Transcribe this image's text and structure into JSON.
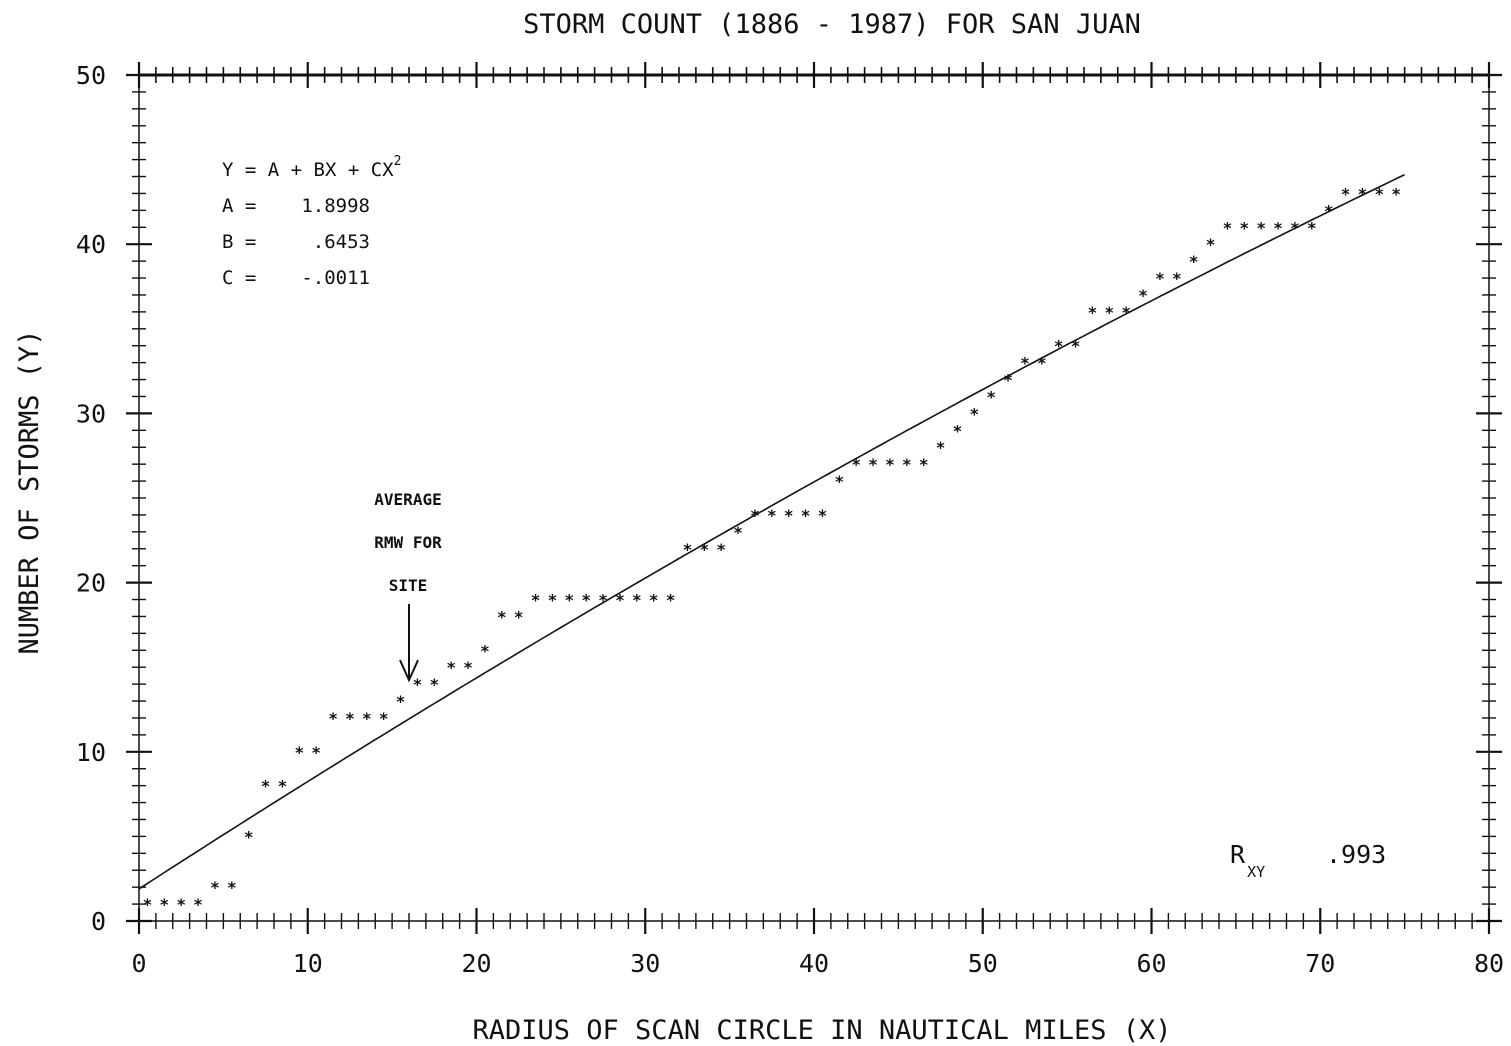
{
  "chart_data": {
    "type": "scatter",
    "title": "STORM COUNT (1886 - 1987) FOR SAN JUAN",
    "xlabel": "RADIUS OF SCAN CIRCLE IN NAUTICAL MILES (X)",
    "ylabel": "NUMBER OF STORMS (Y)",
    "xlim": [
      0,
      80
    ],
    "ylim": [
      0,
      50
    ],
    "x_ticks": [
      "0",
      "10",
      "20",
      "30",
      "40",
      "50",
      "60",
      "70",
      "80"
    ],
    "y_ticks": [
      "0",
      "10",
      "20",
      "30",
      "40",
      "50"
    ],
    "grid": false,
    "marker": "*",
    "points": [
      [
        0.5,
        1
      ],
      [
        1.5,
        1
      ],
      [
        2.5,
        1
      ],
      [
        3.5,
        1
      ],
      [
        4.5,
        2
      ],
      [
        5.5,
        2
      ],
      [
        6.5,
        5
      ],
      [
        7.5,
        8
      ],
      [
        8.5,
        8
      ],
      [
        9.5,
        10
      ],
      [
        10.5,
        10
      ],
      [
        11.5,
        12
      ],
      [
        12.5,
        12
      ],
      [
        13.5,
        12
      ],
      [
        14.5,
        12
      ],
      [
        15.5,
        13
      ],
      [
        16.5,
        14
      ],
      [
        17.5,
        14
      ],
      [
        18.5,
        15
      ],
      [
        19.5,
        15
      ],
      [
        20.5,
        16
      ],
      [
        21.5,
        18
      ],
      [
        22.5,
        18
      ],
      [
        23.5,
        19
      ],
      [
        24.5,
        19
      ],
      [
        25.5,
        19
      ],
      [
        26.5,
        19
      ],
      [
        27.5,
        19
      ],
      [
        28.5,
        19
      ],
      [
        29.5,
        19
      ],
      [
        30.5,
        19
      ],
      [
        31.5,
        19
      ],
      [
        32.5,
        22
      ],
      [
        33.5,
        22
      ],
      [
        34.5,
        22
      ],
      [
        35.5,
        23
      ],
      [
        36.5,
        24
      ],
      [
        37.5,
        24
      ],
      [
        38.5,
        24
      ],
      [
        39.5,
        24
      ],
      [
        40.5,
        24
      ],
      [
        41.5,
        26
      ],
      [
        42.5,
        27
      ],
      [
        43.5,
        27
      ],
      [
        44.5,
        27
      ],
      [
        45.5,
        27
      ],
      [
        46.5,
        27
      ],
      [
        47.5,
        28
      ],
      [
        48.5,
        29
      ],
      [
        49.5,
        30
      ],
      [
        50.5,
        31
      ],
      [
        51.5,
        32
      ],
      [
        52.5,
        33
      ],
      [
        53.5,
        33
      ],
      [
        54.5,
        34
      ],
      [
        55.5,
        34
      ],
      [
        56.5,
        36
      ],
      [
        57.5,
        36
      ],
      [
        58.5,
        36
      ],
      [
        59.5,
        37
      ],
      [
        60.5,
        38
      ],
      [
        61.5,
        38
      ],
      [
        62.5,
        39
      ],
      [
        63.5,
        40
      ],
      [
        64.5,
        41
      ],
      [
        65.5,
        41
      ],
      [
        66.5,
        41
      ],
      [
        67.5,
        41
      ],
      [
        68.5,
        41
      ],
      [
        69.5,
        41
      ],
      [
        70.5,
        42
      ],
      [
        71.5,
        43
      ],
      [
        72.5,
        43
      ],
      [
        73.5,
        43
      ],
      [
        74.5,
        43
      ]
    ],
    "fit": {
      "x_range": [
        0,
        75
      ],
      "equation": "Y = A + BX + CX",
      "exponent": "2",
      "coefficients": [
        {
          "label": "A =",
          "value": "1.8998"
        },
        {
          "label": "B =",
          "value": ".6453"
        },
        {
          "label": "C =",
          "value": "-.0011"
        }
      ]
    },
    "annotation": {
      "lines": [
        "AVERAGE",
        "RMW FOR",
        "SITE"
      ],
      "arrow_x": 16,
      "arrow_y": 14
    },
    "correlation": {
      "label": "R",
      "subscript": "XY",
      "value": ".993"
    }
  }
}
